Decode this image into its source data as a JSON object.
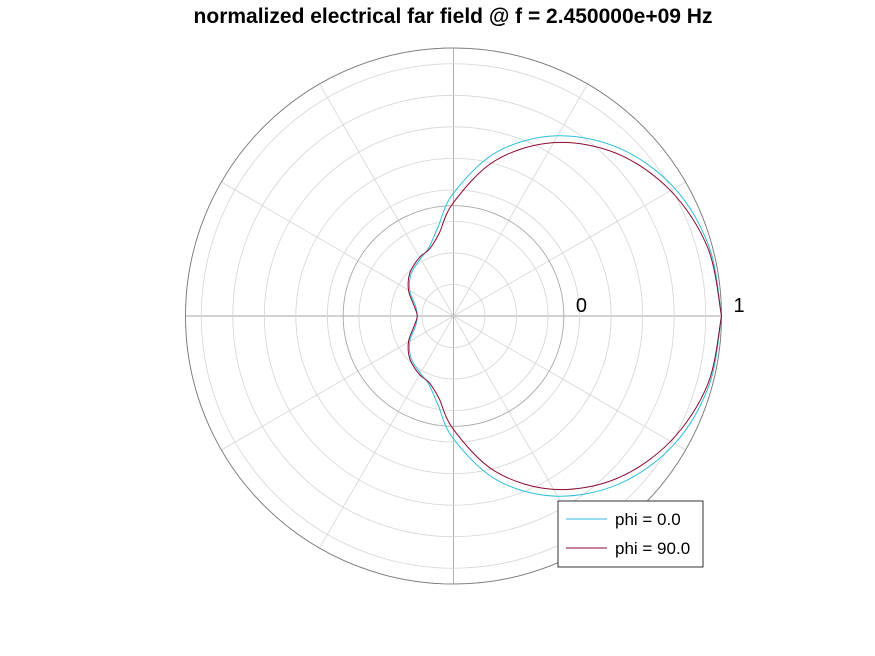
{
  "chart_data": {
    "type": "line",
    "subtype": "polar",
    "title": "normalized electrical far field @ f = 2.450000e+09 Hz",
    "r_ticks": [
      {
        "value": 0,
        "label": "0"
      },
      {
        "value": 1,
        "label": "1"
      }
    ],
    "rlim": [
      -0.7,
      1
    ],
    "r_grid": [
      -0.5,
      -0.3,
      -0.1,
      0.1,
      0.3,
      0.5,
      0.7,
      0.9
    ],
    "theta_grid_step_deg": 30,
    "grid": true,
    "legend_position": "bottom-right",
    "theta_deg": [
      0,
      15,
      30,
      45,
      60,
      75,
      90,
      100,
      110,
      120,
      135,
      150,
      165,
      180
    ],
    "series": [
      {
        "name": "phi = 0.0",
        "color": "#2fbfdf",
        "r": [
          1.0,
          0.98,
          0.92,
          0.8,
          0.62,
          0.38,
          0.08,
          -0.13,
          -0.24,
          -0.28,
          -0.32,
          -0.38,
          -0.45,
          -0.47
        ]
      },
      {
        "name": "phi = 90.0",
        "color": "#8b0a2f",
        "r": [
          1.0,
          0.97,
          0.89,
          0.76,
          0.57,
          0.32,
          0.02,
          -0.17,
          -0.25,
          -0.27,
          -0.31,
          -0.37,
          -0.44,
          -0.47
        ]
      }
    ]
  }
}
